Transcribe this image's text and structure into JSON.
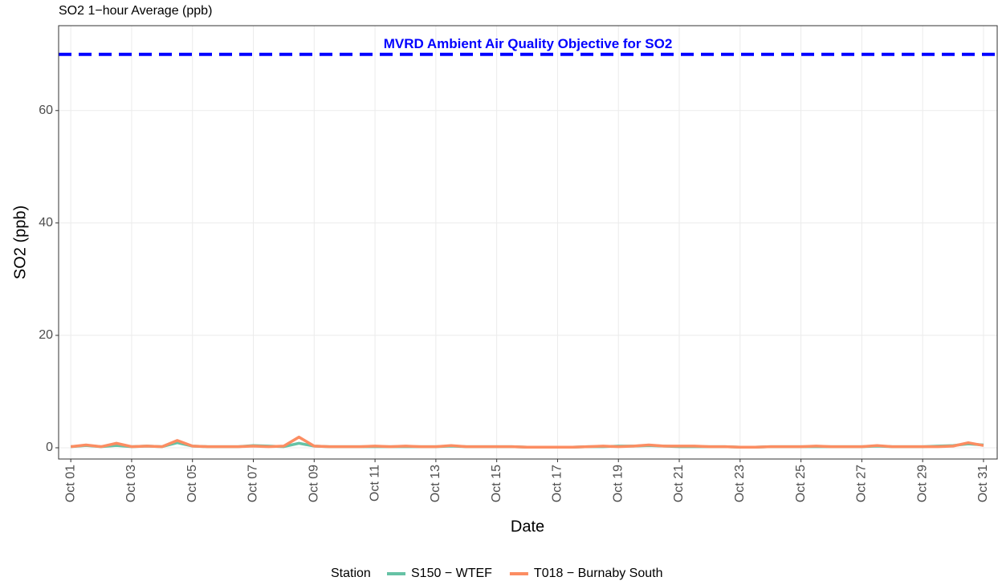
{
  "chart_data": {
    "type": "line",
    "title": "SO2 1−hour Average (ppb)",
    "x_label": "Date",
    "y_label": "SO2 (ppb)",
    "legend_title": "Station",
    "legend": "bottom",
    "grid": true,
    "x": [
      1,
      1.5,
      2,
      2.5,
      3,
      3.5,
      4,
      4.5,
      5,
      5.5,
      6,
      6.5,
      7,
      7.5,
      8,
      8.5,
      9,
      9.5,
      10,
      10.5,
      11,
      11.5,
      12,
      12.5,
      13,
      13.5,
      14,
      14.5,
      15,
      15.5,
      16,
      16.5,
      17,
      17.5,
      18,
      18.5,
      19,
      19.5,
      20,
      20.5,
      21,
      21.5,
      22,
      22.5,
      23,
      23.5,
      24,
      24.5,
      25,
      25.5,
      26,
      26.5,
      27,
      27.5,
      28,
      28.5,
      29,
      29.5,
      30,
      30.5,
      31
    ],
    "series": [
      {
        "name": "S150 − WTEF",
        "color": "#66c2a5",
        "values": [
          0.2,
          0.4,
          0.2,
          0.4,
          0.2,
          0.3,
          0.2,
          0.9,
          0.3,
          0.2,
          0.2,
          0.2,
          0.4,
          0.3,
          0.2,
          0.8,
          0.3,
          0.2,
          0.2,
          0.2,
          0.2,
          0.2,
          0.2,
          0.2,
          0.2,
          0.3,
          0.2,
          0.2,
          0.2,
          0.2,
          0.1,
          0.1,
          0.1,
          0.1,
          0.2,
          0.2,
          0.3,
          0.3,
          0.4,
          0.3,
          0.2,
          0.2,
          0.2,
          0.2,
          0.1,
          0.1,
          0.2,
          0.2,
          0.2,
          0.2,
          0.2,
          0.2,
          0.2,
          0.3,
          0.2,
          0.2,
          0.2,
          0.3,
          0.4,
          0.7,
          0.5
        ]
      },
      {
        "name": "T018 − Burnaby South",
        "color": "#fc8d62",
        "values": [
          0.2,
          0.5,
          0.2,
          0.8,
          0.2,
          0.3,
          0.2,
          1.3,
          0.3,
          0.2,
          0.2,
          0.2,
          0.3,
          0.2,
          0.3,
          1.9,
          0.3,
          0.2,
          0.2,
          0.2,
          0.3,
          0.2,
          0.3,
          0.2,
          0.2,
          0.4,
          0.2,
          0.2,
          0.2,
          0.2,
          0.1,
          0.1,
          0.1,
          0.1,
          0.2,
          0.3,
          0.2,
          0.3,
          0.5,
          0.3,
          0.3,
          0.3,
          0.2,
          0.2,
          0.1,
          0.1,
          0.2,
          0.2,
          0.2,
          0.3,
          0.2,
          0.2,
          0.2,
          0.4,
          0.2,
          0.2,
          0.2,
          0.2,
          0.3,
          0.9,
          0.4
        ]
      }
    ],
    "xlim": [
      0.6,
      31.45
    ],
    "xticks": [
      {
        "value": 1,
        "label": "Oct 01"
      },
      {
        "value": 3,
        "label": "Oct 03"
      },
      {
        "value": 5,
        "label": "Oct 05"
      },
      {
        "value": 7,
        "label": "Oct 07"
      },
      {
        "value": 9,
        "label": "Oct 09"
      },
      {
        "value": 11,
        "label": "Oct 11"
      },
      {
        "value": 13,
        "label": "Oct 13"
      },
      {
        "value": 15,
        "label": "Oct 15"
      },
      {
        "value": 17,
        "label": "Oct 17"
      },
      {
        "value": 19,
        "label": "Oct 19"
      },
      {
        "value": 21,
        "label": "Oct 21"
      },
      {
        "value": 23,
        "label": "Oct 23"
      },
      {
        "value": 25,
        "label": "Oct 25"
      },
      {
        "value": 27,
        "label": "Oct 27"
      },
      {
        "value": 29,
        "label": "Oct 29"
      },
      {
        "value": 31,
        "label": "Oct 31"
      }
    ],
    "ylim": [
      -2,
      75.1
    ],
    "yticks": [
      0,
      20,
      40,
      60
    ],
    "hlines": [
      {
        "value": 70,
        "label": "MVRD Ambient Air Quality Objective for SO2",
        "color": "#0000ff"
      }
    ]
  }
}
